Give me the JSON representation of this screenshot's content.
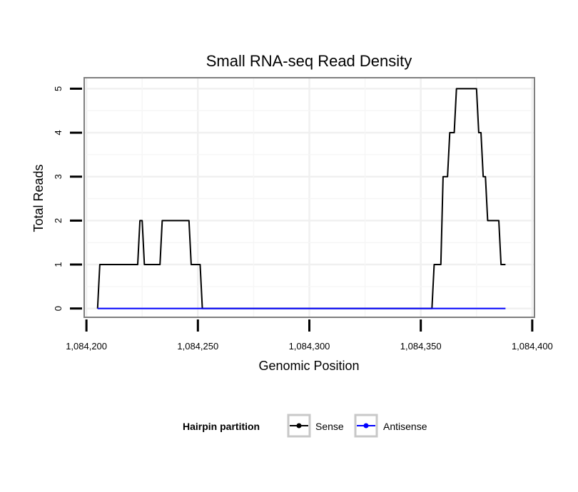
{
  "chart_data": {
    "type": "line",
    "title": "Small RNA-seq Read Density",
    "xlabel": "Genomic Position",
    "ylabel": "Total Reads",
    "xlim": [
      1084199,
      1084401
    ],
    "ylim": [
      -0.2,
      5.25
    ],
    "x_ticks": [
      1084200,
      1084250,
      1084300,
      1084350,
      1084400
    ],
    "x_tick_labels": [
      "1,084,200",
      "1,084,250",
      "1,084,300",
      "1,084,350",
      "1,084,400"
    ],
    "y_ticks": [
      0,
      1,
      2,
      3,
      4,
      5
    ],
    "y_tick_labels": [
      "0",
      "1",
      "2",
      "3",
      "4",
      "5"
    ],
    "grid": true,
    "legend": {
      "title": "Hairpin partition",
      "position": "bottom"
    },
    "series": [
      {
        "name": "Sense",
        "color": "#000000",
        "x": [
          1084205,
          1084205.5,
          1084206,
          1084223,
          1084224,
          1084225,
          1084226,
          1084233,
          1084234,
          1084246,
          1084247,
          1084251,
          1084252,
          1084355,
          1084356,
          1084359,
          1084360,
          1084362,
          1084363,
          1084365,
          1084366,
          1084375,
          1084376,
          1084377,
          1084378,
          1084379,
          1084380,
          1084385,
          1084386,
          1084388
        ],
        "values": [
          0,
          0.5,
          1,
          1,
          2,
          2,
          1,
          1,
          2,
          2,
          1,
          1,
          0,
          0,
          1,
          1,
          3,
          3,
          4,
          4,
          5,
          5,
          4,
          4,
          3,
          3,
          2,
          2,
          1,
          1
        ]
      },
      {
        "name": "Antisense",
        "color": "#0000ff",
        "x": [
          1084205,
          1084388
        ],
        "values": [
          0,
          0
        ]
      }
    ]
  }
}
